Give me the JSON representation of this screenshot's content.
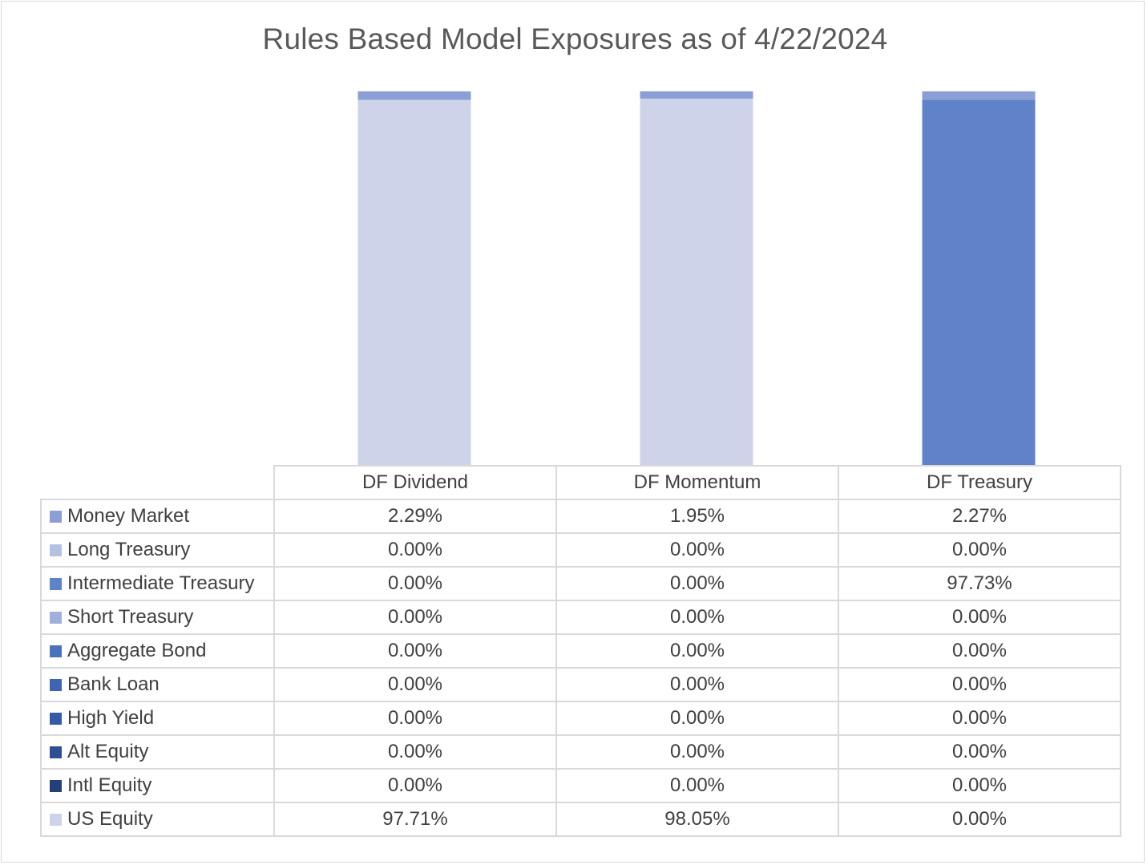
{
  "chart_data": {
    "type": "bar",
    "stacked": true,
    "title": "Rules Based Model Exposures as of 4/22/2024",
    "categories": [
      "DF Dividend",
      "DF Momentum",
      "DF Treasury"
    ],
    "ylim": [
      0,
      100
    ],
    "grid": false,
    "legend": "data-table",
    "series": [
      {
        "name": "Money Market",
        "color": "#8c9ed6",
        "values": [
          2.29,
          1.95,
          2.27
        ],
        "labels": [
          "2.29%",
          "1.95%",
          "2.27%"
        ]
      },
      {
        "name": "Long Treasury",
        "color": "#b4c1e3",
        "values": [
          0,
          0,
          0
        ],
        "labels": [
          "0.00%",
          "0.00%",
          "0.00%"
        ]
      },
      {
        "name": "Intermediate Treasury",
        "color": "#5f82c8",
        "values": [
          0,
          0,
          97.73
        ],
        "labels": [
          "0.00%",
          "0.00%",
          "97.73%"
        ]
      },
      {
        "name": "Short Treasury",
        "color": "#9fb1da",
        "values": [
          0,
          0,
          0
        ],
        "labels": [
          "0.00%",
          "0.00%",
          "0.00%"
        ]
      },
      {
        "name": "Aggregate Bond",
        "color": "#4a71c0",
        "values": [
          0,
          0,
          0
        ],
        "labels": [
          "0.00%",
          "0.00%",
          "0.00%"
        ]
      },
      {
        "name": "Bank Loan",
        "color": "#3e64b3",
        "values": [
          0,
          0,
          0
        ],
        "labels": [
          "0.00%",
          "0.00%",
          "0.00%"
        ]
      },
      {
        "name": "High Yield",
        "color": "#355aa6",
        "values": [
          0,
          0,
          0
        ],
        "labels": [
          "0.00%",
          "0.00%",
          "0.00%"
        ]
      },
      {
        "name": "Alt Equity",
        "color": "#2e4f93",
        "values": [
          0,
          0,
          0
        ],
        "labels": [
          "0.00%",
          "0.00%",
          "0.00%"
        ]
      },
      {
        "name": "Intl Equity",
        "color": "#253f7b",
        "values": [
          0,
          0,
          0
        ],
        "labels": [
          "0.00%",
          "0.00%",
          "0.00%"
        ]
      },
      {
        "name": "US Equity",
        "color": "#cdd4ea",
        "values": [
          97.71,
          98.05,
          0
        ],
        "labels": [
          "97.71%",
          "98.05%",
          "0.00%"
        ]
      }
    ]
  }
}
